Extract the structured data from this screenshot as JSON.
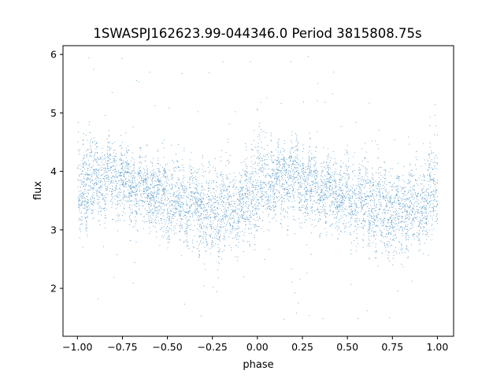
{
  "chart_data": {
    "type": "scatter",
    "title": "1SWASPJ162623.99-044346.0 Period 3815808.75s",
    "xlabel": "phase",
    "ylabel": "flux",
    "xlim": [
      -1.08,
      1.09
    ],
    "ylim": [
      1.18,
      6.15
    ],
    "xticks": [
      -1.0,
      -0.75,
      -0.5,
      -0.25,
      0.0,
      0.25,
      0.5,
      0.75,
      1.0
    ],
    "xtick_labels": [
      "−1.00",
      "−0.75",
      "−0.50",
      "−0.25",
      "0.00",
      "0.25",
      "0.50",
      "0.75",
      "1.00"
    ],
    "yticks": [
      2,
      3,
      4,
      5,
      6
    ],
    "ytick_labels": [
      "2",
      "3",
      "4",
      "5",
      "6"
    ],
    "grid": false,
    "legend": "none",
    "point_color": "#1f77b4",
    "series": [
      {
        "x_range": [
          -1.0,
          1.0
        ],
        "approx_point_count": 36000,
        "envelope": {
          "phase": [
            -1.0,
            -0.9,
            -0.8,
            -0.7,
            -0.6,
            -0.5,
            -0.4,
            -0.3,
            -0.25,
            -0.2,
            -0.1,
            0.0,
            0.1,
            0.2,
            0.3,
            0.4,
            0.5,
            0.6,
            0.7,
            0.75,
            0.8,
            0.9,
            1.0
          ],
          "center": [
            3.65,
            3.85,
            3.95,
            3.8,
            3.65,
            3.55,
            3.45,
            3.35,
            3.3,
            3.35,
            3.4,
            3.65,
            3.85,
            3.95,
            3.8,
            3.65,
            3.55,
            3.45,
            3.35,
            3.3,
            3.35,
            3.4,
            3.65
          ],
          "lower": [
            2.9,
            3.1,
            3.2,
            3.0,
            2.95,
            2.8,
            2.7,
            2.5,
            2.4,
            2.55,
            2.7,
            2.9,
            3.1,
            3.2,
            3.0,
            2.95,
            2.8,
            2.7,
            2.5,
            2.4,
            2.55,
            2.7,
            2.9
          ],
          "upper": [
            4.9,
            4.6,
            4.55,
            4.4,
            4.25,
            4.3,
            4.3,
            4.2,
            4.1,
            4.15,
            4.2,
            4.9,
            4.6,
            4.55,
            4.4,
            4.25,
            4.3,
            4.3,
            4.2,
            4.1,
            4.15,
            4.2,
            4.9
          ]
        },
        "outlier_range": [
          1.4,
          6.0
        ]
      }
    ]
  }
}
